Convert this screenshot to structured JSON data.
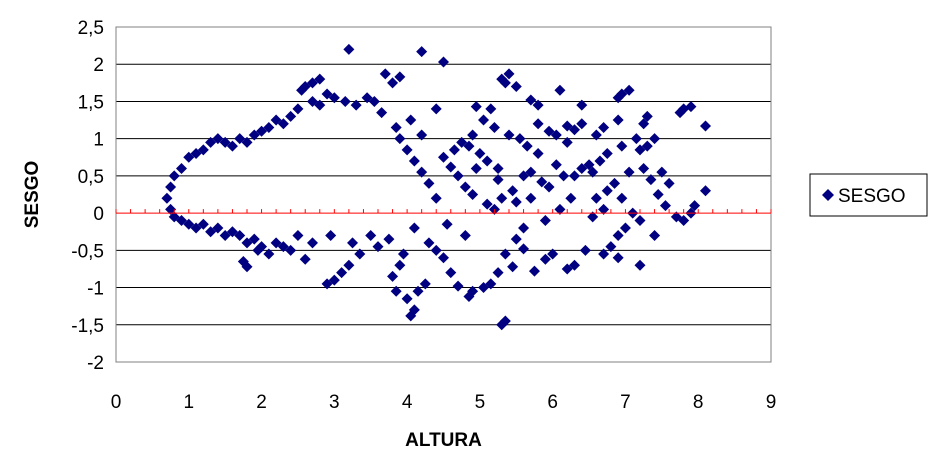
{
  "chart_data": {
    "type": "scatter",
    "title": "",
    "xlabel": "ALTURA",
    "ylabel": "SESGO",
    "xlim": [
      0,
      9
    ],
    "ylim": [
      -2,
      2.5
    ],
    "x_ticks": [
      "0",
      "1",
      "2",
      "3",
      "4",
      "5",
      "6",
      "7",
      "8",
      "9"
    ],
    "y_ticks": [
      "2,5",
      "2",
      "1,5",
      "1",
      "0,5",
      "0",
      "-0,5",
      "-1",
      "-1,5",
      "-2"
    ],
    "grid": "horizontal",
    "zero_line": true,
    "legend": {
      "position": "right",
      "entries": [
        "SESGO"
      ]
    },
    "colors": {
      "series": "#000080",
      "zero_line": "#ff0000",
      "grid": "#000000",
      "frame": "#808080"
    },
    "series": [
      {
        "name": "SESGO",
        "marker": "diamond",
        "points": [
          [
            3.2,
            2.2
          ],
          [
            4.2,
            2.17
          ],
          [
            4.5,
            2.03
          ],
          [
            3.7,
            1.87
          ],
          [
            3.9,
            1.83
          ],
          [
            3.8,
            1.75
          ],
          [
            2.8,
            1.8
          ],
          [
            2.7,
            1.75
          ],
          [
            2.6,
            1.7
          ],
          [
            2.55,
            1.65
          ],
          [
            5.4,
            1.87
          ],
          [
            5.3,
            1.8
          ],
          [
            5.35,
            1.75
          ],
          [
            5.5,
            1.7
          ],
          [
            6.1,
            1.65
          ],
          [
            7.05,
            1.65
          ],
          [
            6.95,
            1.6
          ],
          [
            6.9,
            1.55
          ],
          [
            6.4,
            1.45
          ],
          [
            7.9,
            1.43
          ],
          [
            7.8,
            1.4
          ],
          [
            7.75,
            1.35
          ],
          [
            4.4,
            1.4
          ],
          [
            4.95,
            1.43
          ],
          [
            5.15,
            1.4
          ],
          [
            5.7,
            1.52
          ],
          [
            5.8,
            1.45
          ],
          [
            6.9,
            1.25
          ],
          [
            7.3,
            1.3
          ],
          [
            7.25,
            1.2
          ],
          [
            8.1,
            1.17
          ],
          [
            6.7,
            1.15
          ],
          [
            6.6,
            1.05
          ],
          [
            6.4,
            1.2
          ],
          [
            5.95,
            1.1
          ],
          [
            6.05,
            1.05
          ],
          [
            6.2,
            1.17
          ],
          [
            6.3,
            1.12
          ],
          [
            7.4,
            1.0
          ],
          [
            7.15,
            1.0
          ],
          [
            7.3,
            0.9
          ],
          [
            7.2,
            0.85
          ],
          [
            6.75,
            0.8
          ],
          [
            6.65,
            0.7
          ],
          [
            6.5,
            0.65
          ],
          [
            6.4,
            0.6
          ],
          [
            6.55,
            0.55
          ],
          [
            6.3,
            0.5
          ],
          [
            5.7,
            0.55
          ],
          [
            5.6,
            0.5
          ],
          [
            5.85,
            0.42
          ],
          [
            5.95,
            0.35
          ],
          [
            5.45,
            0.3
          ],
          [
            5.3,
            0.2
          ],
          [
            5.5,
            0.15
          ],
          [
            5.2,
            0.05
          ],
          [
            5.1,
            0.12
          ],
          [
            4.9,
            0.25
          ],
          [
            4.8,
            0.35
          ],
          [
            4.7,
            0.5
          ],
          [
            4.6,
            0.62
          ],
          [
            4.5,
            0.75
          ],
          [
            4.65,
            0.85
          ],
          [
            4.75,
            0.95
          ],
          [
            4.9,
            1.05
          ],
          [
            4.85,
            0.9
          ],
          [
            5.0,
            0.8
          ],
          [
            5.1,
            0.7
          ],
          [
            5.25,
            0.6
          ],
          [
            7.6,
            0.4
          ],
          [
            8.1,
            0.3
          ],
          [
            7.95,
            0.1
          ],
          [
            7.9,
            0.0
          ],
          [
            7.8,
            -0.1
          ],
          [
            7.7,
            -0.05
          ],
          [
            7.55,
            0.1
          ],
          [
            7.4,
            -0.3
          ],
          [
            7.2,
            -0.1
          ],
          [
            7.1,
            0.0
          ],
          [
            7.0,
            -0.2
          ],
          [
            6.9,
            -0.3
          ],
          [
            6.8,
            -0.45
          ],
          [
            6.7,
            -0.55
          ],
          [
            6.9,
            -0.6
          ],
          [
            7.2,
            -0.7
          ],
          [
            6.45,
            -0.5
          ],
          [
            6.3,
            -0.7
          ],
          [
            6.2,
            -0.75
          ],
          [
            6.0,
            -0.55
          ],
          [
            5.9,
            -0.62
          ],
          [
            5.75,
            -0.78
          ],
          [
            5.6,
            -0.48
          ],
          [
            5.5,
            -0.35
          ],
          [
            5.35,
            -0.55
          ],
          [
            5.25,
            -0.8
          ],
          [
            5.45,
            -0.72
          ],
          [
            5.15,
            -0.95
          ],
          [
            5.05,
            -1.0
          ],
          [
            4.9,
            -1.05
          ],
          [
            4.85,
            -1.12
          ],
          [
            4.7,
            -0.98
          ],
          [
            4.6,
            -0.8
          ],
          [
            4.5,
            -0.6
          ],
          [
            4.4,
            -0.5
          ],
          [
            4.25,
            -0.95
          ],
          [
            4.15,
            -1.05
          ],
          [
            4.0,
            -1.15
          ],
          [
            3.85,
            -1.05
          ],
          [
            3.8,
            -0.85
          ],
          [
            3.9,
            -0.7
          ],
          [
            4.1,
            -1.3
          ],
          [
            4.05,
            -1.38
          ],
          [
            5.35,
            -1.45
          ],
          [
            5.3,
            -1.5
          ],
          [
            3.0,
            -0.9
          ],
          [
            2.9,
            -0.95
          ],
          [
            3.1,
            -0.8
          ],
          [
            3.2,
            -0.7
          ],
          [
            1.75,
            -0.65
          ],
          [
            1.8,
            -0.72
          ],
          [
            1.95,
            -0.5
          ],
          [
            2.1,
            -0.55
          ],
          [
            2.3,
            -0.45
          ],
          [
            2.6,
            -0.62
          ],
          [
            2.4,
            -0.5
          ],
          [
            3.35,
            -0.55
          ],
          [
            3.6,
            -0.45
          ],
          [
            3.95,
            -0.55
          ],
          [
            4.3,
            -0.4
          ],
          [
            4.8,
            -0.3
          ],
          [
            5.6,
            -0.2
          ],
          [
            5.9,
            -0.1
          ],
          [
            6.1,
            0.05
          ],
          [
            6.55,
            -0.05
          ],
          [
            6.6,
            0.2
          ],
          [
            6.75,
            0.3
          ],
          [
            6.85,
            0.4
          ],
          [
            6.15,
            0.5
          ],
          [
            6.05,
            0.65
          ],
          [
            5.8,
            0.8
          ],
          [
            5.65,
            0.9
          ],
          [
            5.55,
            1.0
          ],
          [
            5.4,
            1.05
          ],
          [
            5.2,
            1.15
          ],
          [
            5.05,
            1.25
          ],
          [
            5.8,
            1.2
          ],
          [
            6.2,
            0.95
          ],
          [
            6.95,
            0.9
          ],
          [
            7.05,
            0.55
          ],
          [
            7.5,
            0.55
          ],
          [
            7.45,
            0.25
          ],
          [
            7.35,
            0.45
          ],
          [
            7.25,
            0.6
          ],
          [
            6.95,
            0.2
          ],
          [
            6.7,
            0.05
          ],
          [
            6.25,
            0.2
          ],
          [
            5.7,
            0.2
          ],
          [
            5.25,
            0.45
          ],
          [
            4.95,
            0.6
          ],
          [
            4.4,
            0.2
          ],
          [
            4.3,
            0.4
          ],
          [
            4.2,
            0.55
          ],
          [
            4.1,
            0.7
          ],
          [
            4.0,
            0.85
          ],
          [
            3.9,
            1.0
          ],
          [
            3.85,
            1.15
          ],
          [
            4.05,
            1.25
          ],
          [
            4.2,
            1.05
          ],
          [
            3.65,
            1.35
          ],
          [
            3.55,
            1.5
          ],
          [
            3.45,
            1.55
          ],
          [
            3.3,
            1.45
          ],
          [
            3.15,
            1.5
          ],
          [
            3.0,
            1.55
          ],
          [
            2.9,
            1.6
          ],
          [
            2.8,
            1.45
          ],
          [
            2.7,
            1.5
          ],
          [
            2.5,
            1.4
          ],
          [
            2.4,
            1.3
          ],
          [
            2.3,
            1.2
          ],
          [
            2.2,
            1.25
          ],
          [
            2.1,
            1.15
          ],
          [
            2.0,
            1.1
          ],
          [
            1.9,
            1.05
          ],
          [
            1.8,
            0.95
          ],
          [
            1.7,
            1.0
          ],
          [
            1.6,
            0.9
          ],
          [
            1.5,
            0.95
          ],
          [
            1.4,
            1.0
          ],
          [
            1.3,
            0.95
          ],
          [
            1.2,
            0.85
          ],
          [
            1.1,
            0.8
          ],
          [
            1.0,
            0.75
          ],
          [
            0.9,
            0.6
          ],
          [
            0.8,
            0.5
          ],
          [
            0.75,
            0.35
          ],
          [
            0.7,
            0.2
          ],
          [
            0.75,
            0.05
          ],
          [
            0.8,
            -0.05
          ],
          [
            0.9,
            -0.1
          ],
          [
            1.0,
            -0.15
          ],
          [
            1.1,
            -0.2
          ],
          [
            1.2,
            -0.15
          ],
          [
            1.3,
            -0.25
          ],
          [
            1.4,
            -0.2
          ],
          [
            1.5,
            -0.3
          ],
          [
            1.6,
            -0.25
          ],
          [
            1.7,
            -0.3
          ],
          [
            1.8,
            -0.4
          ],
          [
            1.9,
            -0.35
          ],
          [
            2.0,
            -0.45
          ],
          [
            2.2,
            -0.4
          ],
          [
            2.5,
            -0.3
          ],
          [
            2.7,
            -0.4
          ],
          [
            2.95,
            -0.3
          ],
          [
            3.25,
            -0.4
          ],
          [
            3.5,
            -0.3
          ],
          [
            3.75,
            -0.35
          ],
          [
            4.1,
            -0.2
          ],
          [
            4.55,
            -0.15
          ]
        ]
      }
    ]
  }
}
